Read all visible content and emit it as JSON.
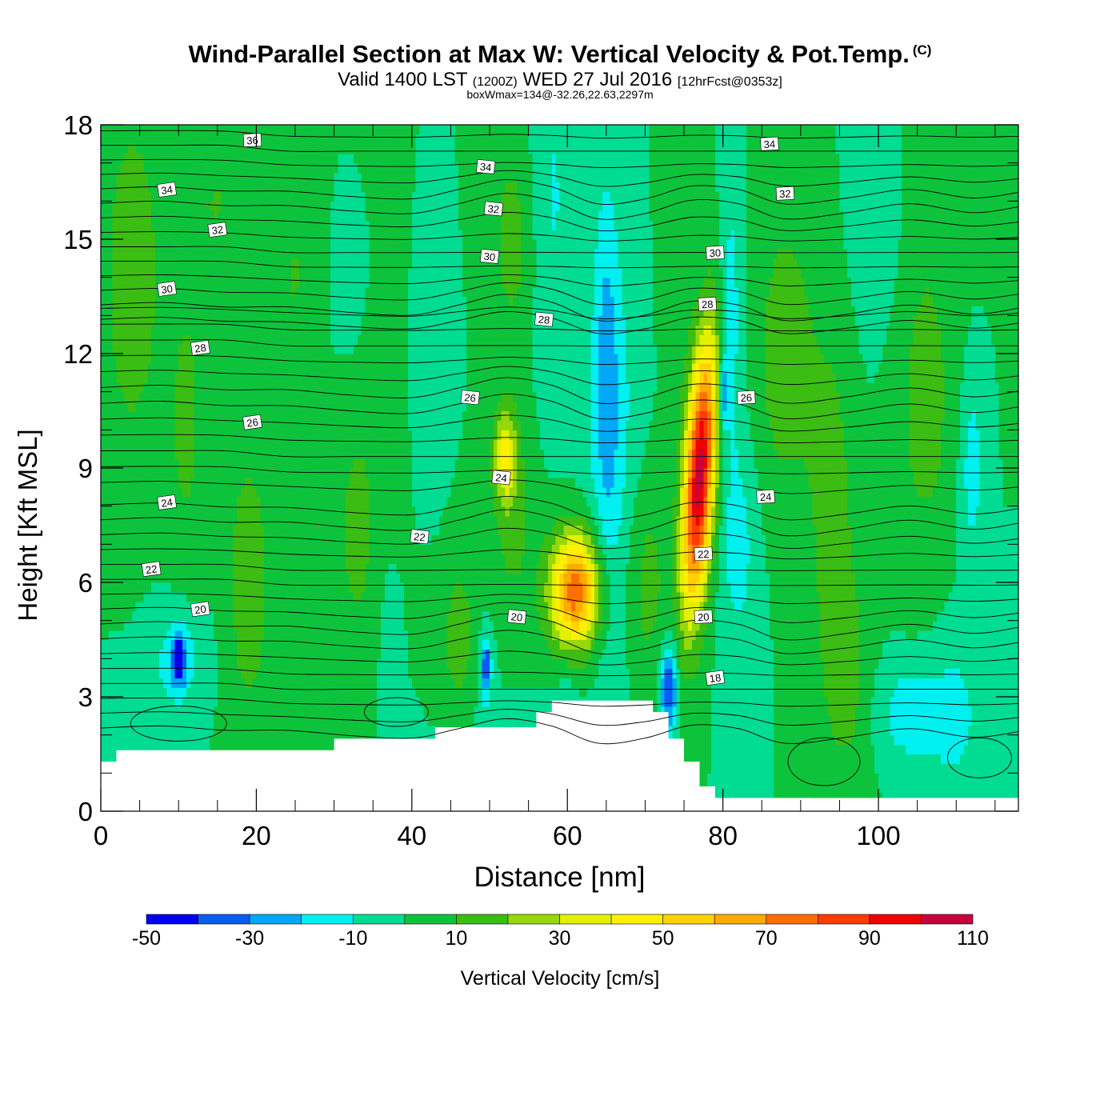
{
  "header": {
    "title": "Wind-Parallel Section at Max W: Vertical Velocity & Pot.Temp.",
    "copyright": "(C)",
    "valid_prefix": "Valid 1400 LST",
    "valid_utc": "(1200Z)",
    "valid_date": "WED 27 Jul 2016",
    "forecast": "[12hrFcst@0353z]",
    "box_info": "boxWmax=134@-32.26,22.63,2297m"
  },
  "chart_data": {
    "type": "heatmap",
    "title": "Wind-Parallel Section at Max W: Vertical Velocity & Pot.Temp.",
    "xlabel": "Distance [nm]",
    "ylabel": "Height [Kft MSL]",
    "xlim": [
      0,
      118
    ],
    "ylim": [
      0,
      18
    ],
    "x_ticks": [
      0,
      20,
      40,
      60,
      80,
      100
    ],
    "y_ticks": [
      0,
      3,
      6,
      9,
      12,
      15,
      18
    ],
    "colorbar": {
      "label": "Vertical Velocity [cm/s]",
      "bounds": [
        -50,
        -40,
        -30,
        -20,
        -10,
        0,
        10,
        20,
        30,
        40,
        50,
        60,
        70,
        80,
        90,
        100,
        110
      ],
      "tick_labels": [
        "-50",
        "-30",
        "-10",
        "10",
        "30",
        "50",
        "70",
        "90",
        "110"
      ],
      "colors": [
        "#0000ee",
        "#0a5cf0",
        "#00a8f5",
        "#00f0f0",
        "#00dc91",
        "#0ec33c",
        "#3bbd14",
        "#96d80a",
        "#e3f000",
        "#fff000",
        "#ffd200",
        "#ffaa00",
        "#ff6e00",
        "#ff3c00",
        "#f00000",
        "#c8003c"
      ]
    },
    "background_value": 0,
    "updraft_cores": [
      {
        "x": 77,
        "z": 8.8,
        "w_max": 105,
        "note": "primary updraft (boxWmax 134)"
      },
      {
        "x": 61,
        "z": 5.8,
        "w_max": 78
      },
      {
        "x": 52,
        "z": 9.3,
        "w_max": 38
      }
    ],
    "downdraft_cores": [
      {
        "x": 73,
        "z": 3.2,
        "w_min": -42
      },
      {
        "x": 10,
        "z": 4.0,
        "w_min": -25
      },
      {
        "x": 49.5,
        "z": 3.8,
        "w_min": -25
      },
      {
        "x": 80,
        "z": 11.0,
        "w_min": -28
      }
    ],
    "terrain": [
      {
        "x": 0,
        "z": 1.3
      },
      {
        "x": 2,
        "z": 1.6
      },
      {
        "x": 30,
        "z": 1.9
      },
      {
        "x": 43,
        "z": 2.2
      },
      {
        "x": 56,
        "z": 2.6
      },
      {
        "x": 58,
        "z": 2.9
      },
      {
        "x": 71,
        "z": 2.6
      },
      {
        "x": 73,
        "z": 1.9
      },
      {
        "x": 75,
        "z": 1.3
      },
      {
        "x": 77,
        "z": 0.65
      },
      {
        "x": 79,
        "z": 0.35
      },
      {
        "x": 118,
        "z": 0.35
      }
    ],
    "theta_contours": {
      "units": "deg C",
      "levels": [
        18,
        20,
        22,
        24,
        26,
        28,
        30,
        32,
        34,
        36
      ],
      "labels": [
        {
          "text": "36",
          "x": 19.5,
          "z": 17.6
        },
        {
          "text": "34",
          "x": 8.5,
          "z": 16.3
        },
        {
          "text": "34",
          "x": 49.5,
          "z": 16.9
        },
        {
          "text": "34",
          "x": 86,
          "z": 17.5
        },
        {
          "text": "32",
          "x": 15,
          "z": 15.25
        },
        {
          "text": "32",
          "x": 50.5,
          "z": 15.8
        },
        {
          "text": "32",
          "x": 88,
          "z": 16.2
        },
        {
          "text": "30",
          "x": 8.5,
          "z": 13.7
        },
        {
          "text": "30",
          "x": 50,
          "z": 14.55
        },
        {
          "text": "30",
          "x": 79,
          "z": 14.65
        },
        {
          "text": "28",
          "x": 12.8,
          "z": 12.15
        },
        {
          "text": "28",
          "x": 57,
          "z": 12.9
        },
        {
          "text": "28",
          "x": 78,
          "z": 13.3
        },
        {
          "text": "26",
          "x": 19.5,
          "z": 10.2
        },
        {
          "text": "26",
          "x": 47.5,
          "z": 10.85
        },
        {
          "text": "26",
          "x": 83,
          "z": 10.85
        },
        {
          "text": "24",
          "x": 8.5,
          "z": 8.1
        },
        {
          "text": "24",
          "x": 51.5,
          "z": 8.75
        },
        {
          "text": "24",
          "x": 85.5,
          "z": 8.25
        },
        {
          "text": "22",
          "x": 6.5,
          "z": 6.35
        },
        {
          "text": "22",
          "x": 41,
          "z": 7.2
        },
        {
          "text": "22",
          "x": 77.5,
          "z": 6.75
        },
        {
          "text": "20",
          "x": 12.8,
          "z": 5.3
        },
        {
          "text": "20",
          "x": 53.5,
          "z": 5.1
        },
        {
          "text": "20",
          "x": 77.5,
          "z": 5.1
        },
        {
          "text": "18",
          "x": 79,
          "z": 3.5
        }
      ]
    }
  }
}
